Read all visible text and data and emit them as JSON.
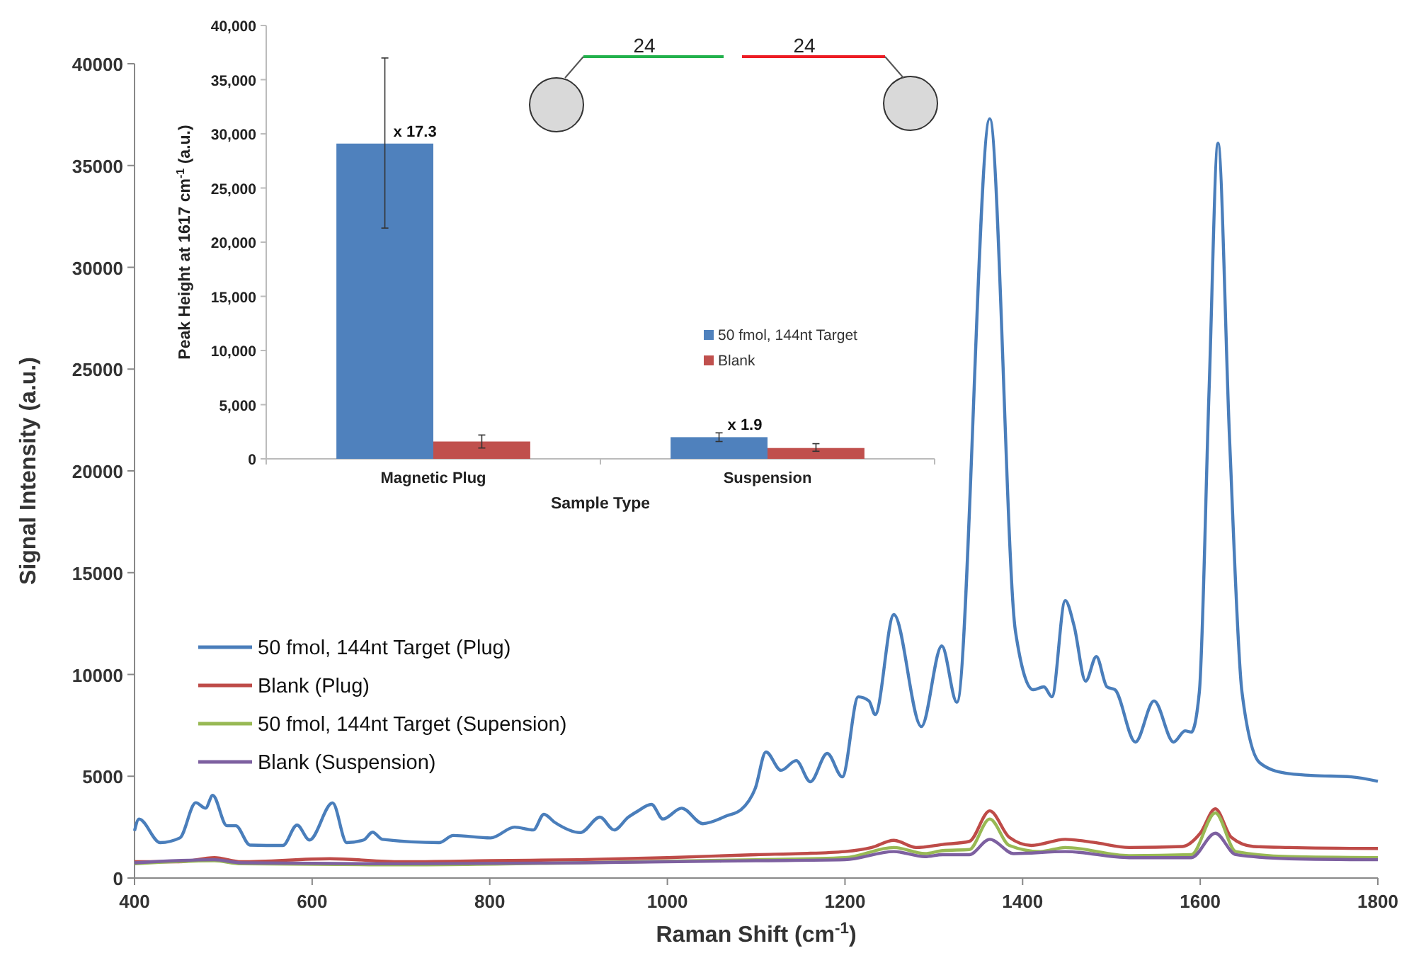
{
  "chart_data": [
    {
      "type": "line",
      "xlabel": "Raman Shift (cm$^{-1}$)",
      "ylabel": "Signal Intensity  (a.u.)",
      "xlim": [
        400,
        1800
      ],
      "xticks": [
        400,
        600,
        800,
        1000,
        1200,
        1400,
        1600,
        1800
      ],
      "ylim": [
        0,
        40000
      ],
      "yticks": [
        0,
        5000,
        10000,
        15000,
        20000,
        25000,
        30000,
        35000,
        40000
      ],
      "legend": "left",
      "grid": false,
      "marker": "none",
      "line_style": "solid",
      "series": [
        {
          "name": "50 fmol, 144nt Target (Plug)",
          "color": "#4a7ebb",
          "x": [
            400,
            405,
            429,
            451,
            469,
            480,
            488,
            504,
            514,
            530,
            567,
            583,
            597,
            623,
            639,
            658,
            668,
            679,
            743,
            759,
            801,
            828,
            849,
            861,
            873,
            902,
            924,
            940,
            956,
            966,
            982,
            995,
            1016,
            1040,
            1067,
            1083,
            1099,
            1111,
            1128,
            1145,
            1161,
            1180,
            1197,
            1215,
            1227,
            1234,
            1255,
            1286,
            1309,
            1326,
            1363,
            1392,
            1412,
            1424,
            1433,
            1448,
            1458,
            1471,
            1483,
            1495,
            1504,
            1527,
            1548,
            1570,
            1583,
            1590,
            1599,
            1610,
            1620,
            1633,
            1647,
            1667,
            1696,
            1725,
            1770,
            1800
          ],
          "values": [
            2320,
            2900,
            1740,
            1970,
            3700,
            3430,
            4060,
            2570,
            2570,
            1620,
            1600,
            2600,
            1870,
            3690,
            1740,
            1870,
            2250,
            1900,
            1740,
            2090,
            1970,
            2500,
            2360,
            3130,
            2740,
            2230,
            2990,
            2360,
            2990,
            3270,
            3620,
            2900,
            3430,
            2670,
            3060,
            3360,
            4410,
            6190,
            5290,
            5770,
            4730,
            6120,
            4970,
            8900,
            8700,
            8030,
            12940,
            7440,
            11400,
            8630,
            37300,
            12100,
            9250,
            9390,
            8900,
            13630,
            12380,
            9670,
            10880,
            9390,
            9250,
            6680,
            8700,
            6680,
            7230,
            7170,
            9140,
            24000,
            36100,
            21600,
            9140,
            5660,
            5150,
            5040,
            4970,
            4750
          ]
        },
        {
          "name": "Blank (Plug)",
          "color": "#be4b48",
          "x": [
            400,
            450,
            490,
            520,
            620,
            700,
            800,
            900,
            1000,
            1100,
            1150,
            1200,
            1230,
            1255,
            1280,
            1310,
            1340,
            1363,
            1385,
            1410,
            1448,
            1480,
            1520,
            1580,
            1600,
            1617,
            1635,
            1660,
            1700,
            1800
          ],
          "values": [
            800,
            800,
            1000,
            800,
            950,
            800,
            850,
            900,
            1000,
            1150,
            1200,
            1300,
            1500,
            1850,
            1500,
            1650,
            1800,
            3300,
            2000,
            1600,
            1900,
            1750,
            1500,
            1550,
            2200,
            3400,
            2000,
            1550,
            1500,
            1450
          ]
        },
        {
          "name": "50 fmol, 144nt Target (Supension)",
          "color": "#98b954",
          "x": [
            400,
            490,
            520,
            700,
            900,
            1100,
            1200,
            1255,
            1290,
            1310,
            1340,
            1363,
            1385,
            1420,
            1448,
            1520,
            1590,
            1617,
            1640,
            1700,
            1800
          ],
          "values": [
            700,
            850,
            700,
            650,
            750,
            900,
            1000,
            1500,
            1200,
            1350,
            1400,
            2900,
            1600,
            1300,
            1500,
            1100,
            1150,
            3200,
            1300,
            1050,
            1000
          ]
        },
        {
          "name": "Blank (Suspension)",
          "color": "#7d60a0",
          "x": [
            400,
            490,
            520,
            700,
            900,
            1100,
            1200,
            1255,
            1290,
            1310,
            1340,
            1363,
            1390,
            1448,
            1520,
            1590,
            1617,
            1640,
            1700,
            1800
          ],
          "values": [
            750,
            900,
            750,
            700,
            750,
            850,
            900,
            1300,
            1050,
            1150,
            1150,
            1900,
            1200,
            1300,
            1000,
            1000,
            2200,
            1150,
            950,
            900
          ]
        }
      ]
    },
    {
      "type": "bar",
      "xlabel": "Sample Type",
      "ylabel": "Peak Height at 1617 cm$^{-1}$ (a.u.)",
      "categories": [
        "Magnetic Plug",
        "Suspension"
      ],
      "ylim": [
        0,
        40000
      ],
      "yticks": [
        {
          "value": 0,
          "label": "0"
        },
        {
          "value": 5000,
          "label": "5,000"
        },
        {
          "value": 10000,
          "label": "10,000"
        },
        {
          "value": 15000,
          "label": "15,000"
        },
        {
          "value": 20000,
          "label": "20,000"
        },
        {
          "value": 25000,
          "label": "25,000"
        },
        {
          "value": 30000,
          "label": "30,000"
        },
        {
          "value": 35000,
          "label": "35,000"
        },
        {
          "value": 40000,
          "label": "40,000"
        }
      ],
      "legend": "right",
      "grid": false,
      "series": [
        {
          "name": "50 fmol, 144nt Target",
          "color": "#4f81bd",
          "values": [
            29100,
            2000
          ],
          "errors": [
            [
              21300,
              37000
            ],
            [
              1600,
              2400
            ]
          ]
        },
        {
          "name": "Blank",
          "color": "#c0504d",
          "values": [
            1600,
            1000
          ],
          "errors": [
            [
              1000,
              2200
            ],
            [
              700,
              1400
            ]
          ]
        }
      ],
      "annotations": [
        "x 17.3",
        "x 1.9",
        "24",
        "24"
      ]
    }
  ]
}
